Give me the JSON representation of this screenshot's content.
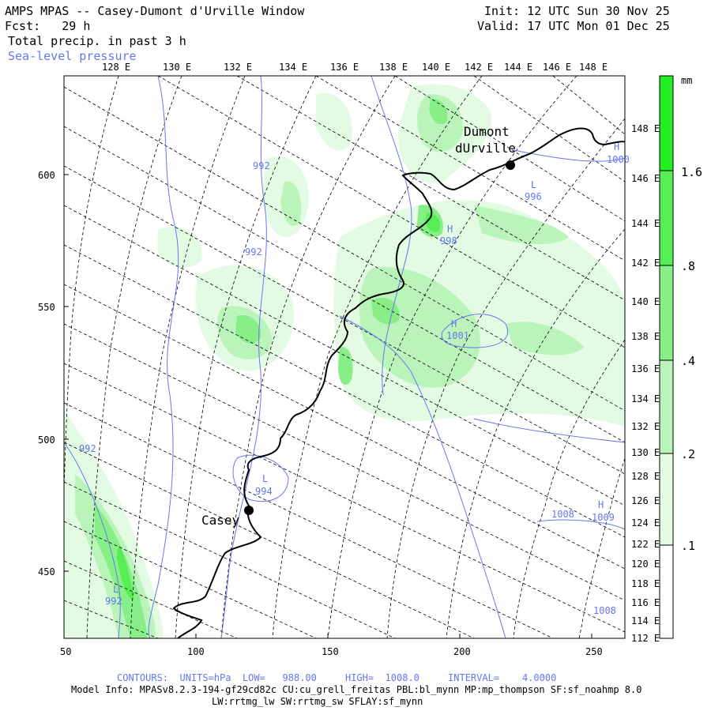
{
  "header": {
    "title": "AMPS MPAS -- Casey-Dumont d'Urville Window",
    "fcst": "Fcst:   29 h",
    "field1": "Total precip. in past 3 h",
    "field2": "Sea-level pressure",
    "init": "Init: 12 UTC Sun 30 Nov 25",
    "valid": "Valid: 17 UTC Mon 01 Dec 25"
  },
  "map": {
    "top_lon_labels": [
      "128 E",
      "130 E",
      "132 E",
      "134 E",
      "136 E",
      "138 E",
      "140 E",
      "142 E",
      "144 E",
      "146 E",
      "148 E"
    ],
    "right_lon_labels": [
      "148 E",
      "146 E",
      "144 E",
      "142 E",
      "140 E",
      "138 E",
      "136 E",
      "134 E",
      "132 E",
      "130 E",
      "128 E",
      "126 E",
      "124 E",
      "122 E",
      "120 E",
      "118 E",
      "116 E",
      "114 E",
      "112 E"
    ],
    "x_ticks": [
      "50",
      "100",
      "150",
      "200",
      "250"
    ],
    "y_ticks": [
      "600",
      "550",
      "500",
      "450"
    ],
    "places": [
      {
        "name": "Casey"
      },
      {
        "name": "Dumont"
      },
      {
        "name": "dUrville"
      }
    ],
    "contour_labels": [
      {
        "text": "992"
      },
      {
        "text": "992"
      },
      {
        "text": "992"
      },
      {
        "text": "L"
      },
      {
        "text": "992"
      },
      {
        "text": "L"
      },
      {
        "text": "994"
      },
      {
        "text": "H"
      },
      {
        "text": "998"
      },
      {
        "text": "H"
      },
      {
        "text": "1001"
      },
      {
        "text": "L"
      },
      {
        "text": "996"
      },
      {
        "text": "H"
      },
      {
        "text": "1000"
      },
      {
        "text": "1008"
      },
      {
        "text": "H"
      },
      {
        "text": "1009"
      },
      {
        "text": "1008"
      }
    ]
  },
  "colorbar": {
    "unit": "mm",
    "labels": [
      "1.6",
      ".8",
      ".4",
      ".2",
      ".1"
    ],
    "colors": [
      "#22ee22",
      "#55ee55",
      "#88ee88",
      "#bbf4bb",
      "#e2fbe2"
    ]
  },
  "footer": {
    "contours": "CONTOURS:  UNITS=hPa  LOW=   988.00     HIGH=  1008.0     INTERVAL=    4.0000",
    "model1": "Model Info: MPASv8.2.3-194-gf29cd82c CU:cu_grell_freitas PBL:bl_mynn MP:mp_thompson SF:sf_noahmp 8.0",
    "model2": "LW:rrtmg_lw SW:rrtmg_sw SFLAY:sf_mynn"
  }
}
